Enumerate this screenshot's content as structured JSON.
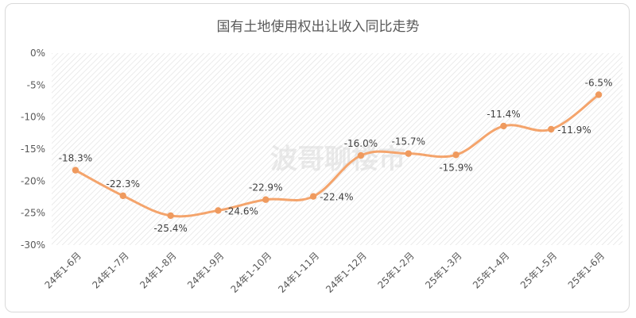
{
  "chart_data": {
    "type": "line",
    "title": "国有土地使用权出让收入同比走势",
    "watermark": "波哥聊楼市",
    "categories": [
      "24年1-6月",
      "24年1-7月",
      "24年1-8月",
      "24年1-9月",
      "24年1-10月",
      "24年1-11月",
      "24年1-12月",
      "25年1-2月",
      "25年1-3月",
      "25年1-4月",
      "25年1-5月",
      "25年1-6月"
    ],
    "series": [
      {
        "name": "国有土地使用权出让收入同比",
        "values": [
          -18.3,
          -22.3,
          -25.4,
          -24.6,
          -22.9,
          -22.4,
          -16.0,
          -15.7,
          -15.9,
          -11.4,
          -11.9,
          -6.5
        ],
        "labels": [
          "-18.3%",
          "-22.3%",
          "-25.4%",
          "-24.6%",
          "-22.9%",
          "-22.4%",
          "-16.0%",
          "-15.7%",
          "-15.9%",
          "-11.4%",
          "-11.9%",
          "-6.5%"
        ]
      }
    ],
    "y_ticks": [
      0,
      -5,
      -10,
      -15,
      -20,
      -25,
      -30
    ],
    "y_tick_labels": [
      "0%",
      "-5%",
      "-10%",
      "-15%",
      "-20%",
      "-25%",
      "-30%"
    ],
    "ylim": [
      -30,
      0
    ],
    "label_positions": [
      "above",
      "above",
      "below",
      "right",
      "above",
      "right",
      "above",
      "above",
      "below",
      "above",
      "right",
      "above"
    ],
    "colors": {
      "line": "#f4a46c",
      "marker": "#ef9a5e",
      "hatch": "#d9d9d9"
    },
    "grid": false,
    "legend": "none"
  }
}
